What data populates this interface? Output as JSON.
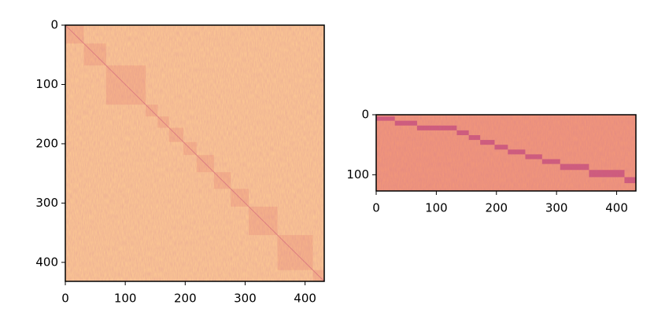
{
  "chart_data": [
    {
      "type": "heatmap",
      "xlim": [
        0,
        432
      ],
      "ylim": [
        432,
        0
      ],
      "xticks": [
        0,
        100,
        200,
        300,
        400
      ],
      "yticks": [
        0,
        100,
        200,
        300,
        400
      ],
      "color": "#fcc893",
      "block_color": "#f5ad85",
      "blocks": [
        [
          0,
          31,
          0,
          31
        ],
        [
          31,
          68,
          31,
          68
        ],
        [
          68,
          134,
          68,
          134
        ],
        [
          134,
          154,
          134,
          154
        ],
        [
          154,
          173,
          154,
          173
        ],
        [
          173,
          197,
          173,
          197
        ],
        [
          197,
          219,
          197,
          219
        ],
        [
          219,
          248,
          219,
          248
        ],
        [
          248,
          276,
          248,
          276
        ],
        [
          276,
          306,
          276,
          306
        ],
        [
          306,
          354,
          306,
          354
        ],
        [
          354,
          413,
          354,
          413
        ],
        [
          413,
          432,
          413,
          432
        ]
      ]
    },
    {
      "type": "heatmap",
      "xlim": [
        0,
        432
      ],
      "ylim": [
        127,
        0
      ],
      "xticks": [
        0,
        100,
        200,
        300,
        400
      ],
      "yticks": [
        0,
        100
      ],
      "color": "#f2977a",
      "block_color": "#c3467c",
      "blocks": [
        [
          0,
          31,
          3,
          10
        ],
        [
          31,
          68,
          10,
          18
        ],
        [
          68,
          134,
          18,
          26
        ],
        [
          134,
          154,
          26,
          34
        ],
        [
          154,
          173,
          34,
          42
        ],
        [
          173,
          197,
          42,
          50
        ],
        [
          197,
          219,
          50,
          58
        ],
        [
          219,
          248,
          58,
          66
        ],
        [
          248,
          276,
          66,
          74
        ],
        [
          276,
          306,
          74,
          82
        ],
        [
          306,
          354,
          82,
          92
        ],
        [
          354,
          413,
          92,
          104
        ],
        [
          413,
          432,
          104,
          114
        ]
      ]
    }
  ]
}
